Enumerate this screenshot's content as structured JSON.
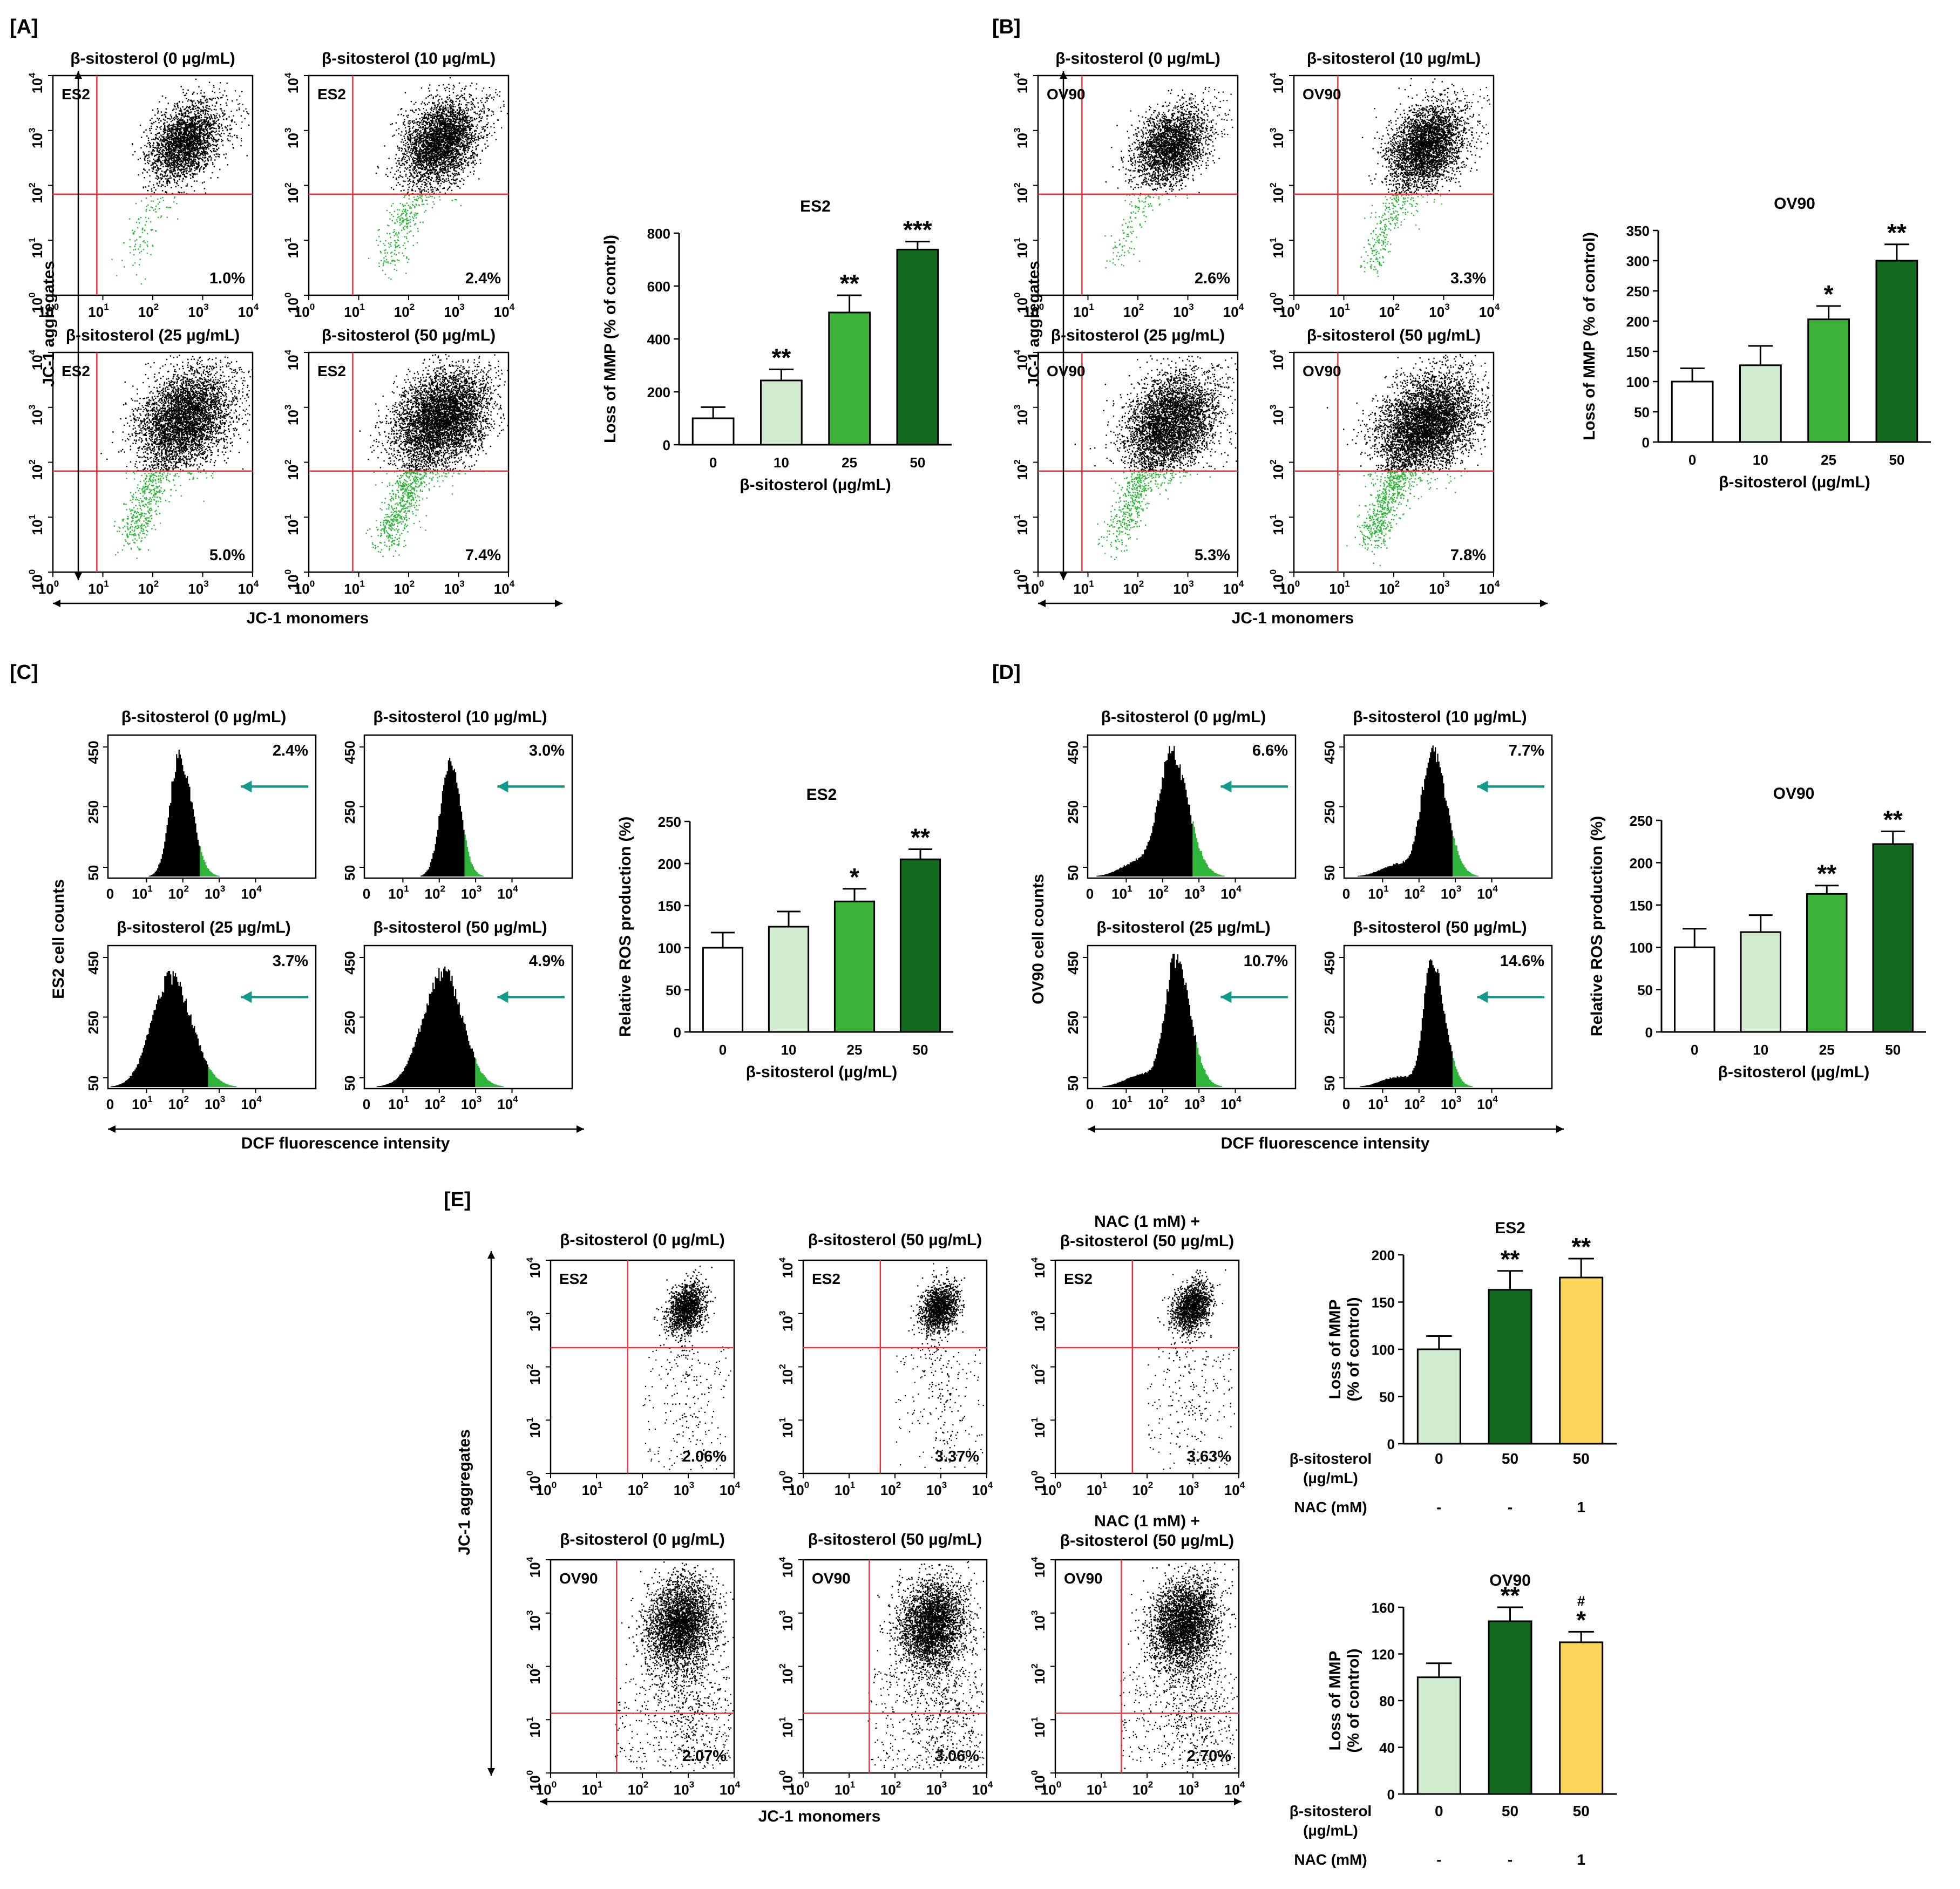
{
  "panels": {
    "A": {
      "label": "[A]",
      "scatter_titles": [
        "β-sitosterol (0 µg/mL)",
        "β-sitosterol (10 µg/mL)",
        "β-sitosterol (25 µg/mL)",
        "β-sitosterol (50 µg/mL)"
      ],
      "cell_label": "ES2",
      "percents": [
        "1.0%",
        "2.4%",
        "5.0%",
        "7.4%"
      ],
      "x_title": "JC-1 monomers",
      "y_title": "JC-1 aggregates"
    },
    "B": {
      "label": "[B]",
      "scatter_titles": [
        "β-sitosterol (0 µg/mL)",
        "β-sitosterol (10 µg/mL)",
        "β-sitosterol (25 µg/mL)",
        "β-sitosterol (50 µg/mL)"
      ],
      "cell_label": "OV90",
      "percents": [
        "2.6%",
        "3.3%",
        "5.3%",
        "7.8%"
      ],
      "x_title": "JC-1 monomers",
      "y_title": "JC-1 aggregates"
    },
    "C": {
      "label": "[C]",
      "hist_titles": [
        "β-sitosterol (0 µg/mL)",
        "β-sitosterol (10 µg/mL)",
        "β-sitosterol (25 µg/mL)",
        "β-sitosterol (50 µg/mL)"
      ],
      "percents": [
        "2.4%",
        "3.0%",
        "3.7%",
        "4.9%"
      ],
      "x_title": "DCF fluorescence intensity",
      "y_title": "ES2 cell counts",
      "y_ticks": [
        "450",
        "250",
        "50"
      ]
    },
    "D": {
      "label": "[D]",
      "hist_titles": [
        "β-sitosterol (0 µg/mL)",
        "β-sitosterol (10 µg/mL)",
        "β-sitosterol (25 µg/mL)",
        "β-sitosterol (50 µg/mL)"
      ],
      "percents": [
        "6.6%",
        "7.7%",
        "10.7%",
        "14.6%"
      ],
      "x_title": "DCF fluorescence intensity",
      "y_title": "OV90 cell counts",
      "y_ticks": [
        "450",
        "250",
        "50"
      ]
    },
    "E": {
      "label": "[E]",
      "scatter_titles": [
        "β-sitosterol (0 µg/mL)",
        "β-sitosterol (50 µg/mL)",
        "NAC (1 mM) +",
        "β-sitosterol (50 µg/mL)"
      ],
      "cell_labels": [
        "ES2",
        "OV90"
      ],
      "percents": [
        "2.06%",
        "3.37%",
        "3.63%",
        "2.07%",
        "3.06%",
        "2.70%"
      ],
      "x_title": "JC-1 monomers",
      "y_title": "JC-1 aggregates",
      "row_labels": {
        "sito": "β-sitosterol",
        "sito_unit": "(µg/mL)",
        "nac": "NAC (mM)"
      },
      "sito_values": [
        "0",
        "50",
        "50"
      ],
      "nac_values": [
        "-",
        "-",
        "1"
      ]
    }
  },
  "log_ticks": [
    "10",
    "10",
    "10",
    "10",
    "10"
  ],
  "log_exps": [
    "0",
    "1",
    "2",
    "3",
    "4"
  ],
  "colors": {
    "gate": "#e8323c",
    "green": "#2fb63a",
    "arrow": "#139a8a",
    "white_bar": "#ffffff",
    "light_green": "#d2ecd0",
    "mid_green": "#3db33a",
    "dark_green": "#146b1f",
    "yellow": "#fcd65a"
  },
  "chart_data": [
    {
      "id": "A-bar",
      "type": "bar",
      "title": "ES2",
      "categories": [
        "0",
        "10",
        "25",
        "50"
      ],
      "values": [
        100,
        243,
        500,
        738
      ],
      "errors": [
        42,
        42,
        65,
        30
      ],
      "significance": [
        "",
        "**",
        "**",
        "***"
      ],
      "xlabel": "β-sitosterol (µg/mL)",
      "ylabel": "Loss of MMP (% of control)",
      "ylim": [
        0,
        800
      ],
      "yticks": [
        0,
        200,
        400,
        600,
        800
      ]
    },
    {
      "id": "B-bar",
      "type": "bar",
      "title": "OV90",
      "categories": [
        "0",
        "10",
        "25",
        "50"
      ],
      "values": [
        100,
        127,
        203,
        300
      ],
      "errors": [
        22,
        32,
        22,
        27
      ],
      "significance": [
        "",
        "",
        "*",
        "**"
      ],
      "xlabel": "β-sitosterol (µg/mL)",
      "ylabel": "Loss of MMP (% of control)",
      "ylim": [
        0,
        350
      ],
      "yticks": [
        0,
        50,
        100,
        150,
        200,
        250,
        300,
        350
      ]
    },
    {
      "id": "C-bar",
      "type": "bar",
      "title": "ES2",
      "categories": [
        "0",
        "10",
        "25",
        "50"
      ],
      "values": [
        100,
        125,
        155,
        205
      ],
      "errors": [
        18,
        18,
        15,
        12
      ],
      "significance": [
        "",
        "",
        "*",
        "**"
      ],
      "xlabel": "β-sitosterol (µg/mL)",
      "ylabel": "Relative ROS production (%)",
      "ylim": [
        0,
        250
      ],
      "yticks": [
        0,
        50,
        100,
        150,
        200,
        250
      ]
    },
    {
      "id": "D-bar",
      "type": "bar",
      "title": "OV90",
      "categories": [
        "0",
        "10",
        "25",
        "50"
      ],
      "values": [
        100,
        118,
        163,
        222
      ],
      "errors": [
        22,
        20,
        10,
        15
      ],
      "significance": [
        "",
        "",
        "**",
        "**"
      ],
      "xlabel": "β-sitosterol (µg/mL)",
      "ylabel": "Relative ROS production (%)",
      "ylim": [
        0,
        250
      ],
      "yticks": [
        0,
        50,
        100,
        150,
        200,
        250
      ]
    },
    {
      "id": "E-bar-ES2",
      "type": "bar",
      "title": "ES2",
      "categories": [
        "0",
        "50",
        "50"
      ],
      "values": [
        100,
        163,
        176
      ],
      "errors": [
        14,
        20,
        20
      ],
      "significance": [
        "",
        "**",
        "**"
      ],
      "ylabel": "Loss of MMP\n(% of control)",
      "ylim": [
        0,
        200
      ],
      "yticks": [
        0,
        50,
        100,
        150,
        200
      ]
    },
    {
      "id": "E-bar-OV90",
      "type": "bar",
      "title": "OV90",
      "categories": [
        "0",
        "50",
        "50"
      ],
      "values": [
        100,
        148,
        130
      ],
      "errors": [
        12,
        12,
        9
      ],
      "significance": [
        "",
        "**",
        "*"
      ],
      "hash": [
        "",
        "",
        "#"
      ],
      "ylabel": "Loss of MMP\n(% of control)",
      "ylim": [
        0,
        160
      ],
      "yticks": [
        0,
        40,
        80,
        120,
        160
      ]
    }
  ]
}
